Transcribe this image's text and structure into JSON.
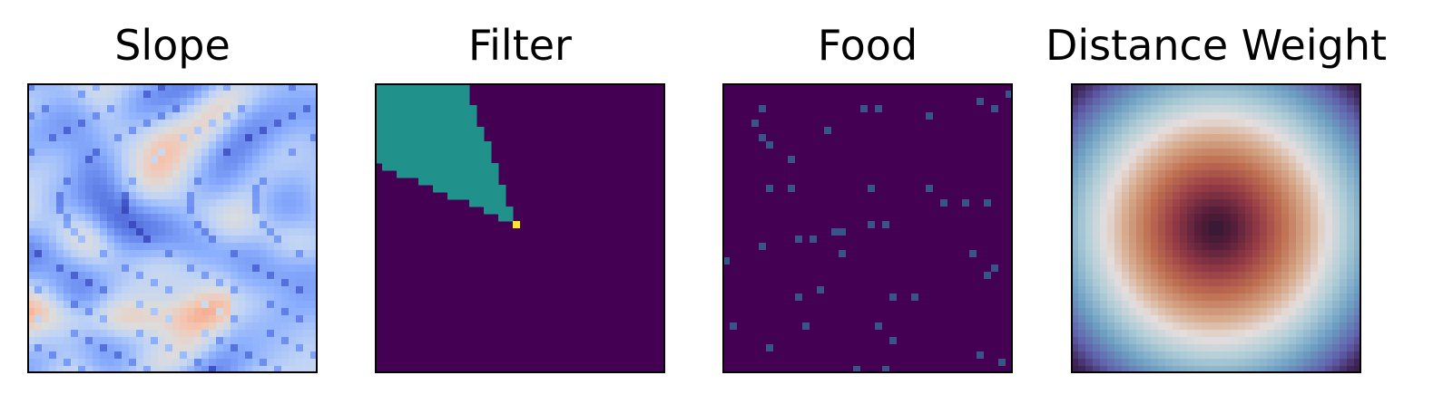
{
  "figure": {
    "panels": [
      {
        "id": "slope",
        "title": "Slope"
      },
      {
        "id": "filter",
        "title": "Filter"
      },
      {
        "id": "food",
        "title": "Food"
      },
      {
        "id": "distance",
        "title": "Distance Weight"
      }
    ]
  },
  "chart_data": [
    {
      "type": "heatmap",
      "title": "Slope",
      "grid_size": [
        40,
        40
      ],
      "colormap": "coolwarm",
      "axes_ticks": false,
      "description_values": "continuous slope field rendered with a blue-to-red diverging colormap, mostly low (blue) values with ridges of darker blue and a band of higher (orange) values across the lower-left",
      "value_range": [
        0,
        1
      ]
    },
    {
      "type": "heatmap",
      "title": "Filter",
      "grid_size": [
        40,
        40
      ],
      "colormap": "viridis",
      "axes_ticks": false,
      "levels": [
        0,
        1,
        2
      ],
      "level_colors": [
        "#440154",
        "#21918c",
        "#fde725"
      ],
      "origin_cell": [
        19,
        19
      ],
      "wedge_value": 1,
      "origin_value": 2
    },
    {
      "type": "heatmap",
      "title": "Food",
      "grid_size": [
        40,
        40
      ],
      "colormap": "viridis",
      "axes_ticks": false,
      "background_color": "#440154",
      "food_color": "#3b528b",
      "food_cells": [
        [
          39,
          1
        ],
        [
          5,
          3
        ],
        [
          19,
          3
        ],
        [
          21,
          3
        ],
        [
          28,
          4
        ],
        [
          37,
          3
        ],
        [
          35,
          2
        ],
        [
          4,
          5
        ],
        [
          14,
          6
        ],
        [
          5,
          7
        ],
        [
          6,
          8
        ],
        [
          9,
          10
        ],
        [
          6,
          14
        ],
        [
          9,
          14
        ],
        [
          20,
          14
        ],
        [
          28,
          14
        ],
        [
          30,
          16
        ],
        [
          33,
          16
        ],
        [
          36,
          16
        ],
        [
          20,
          19
        ],
        [
          15,
          20
        ],
        [
          16,
          20
        ],
        [
          22,
          19
        ],
        [
          10,
          21
        ],
        [
          12,
          21
        ],
        [
          5,
          22
        ],
        [
          16,
          23
        ],
        [
          34,
          23
        ],
        [
          0,
          24
        ],
        [
          37,
          25
        ],
        [
          36,
          26
        ],
        [
          10,
          29
        ],
        [
          13,
          28
        ],
        [
          23,
          29
        ],
        [
          26,
          29
        ],
        [
          1,
          33
        ],
        [
          11,
          33
        ],
        [
          21,
          33
        ],
        [
          23,
          35
        ],
        [
          6,
          36
        ],
        [
          18,
          39
        ],
        [
          22,
          39
        ],
        [
          35,
          37
        ],
        [
          38,
          38
        ]
      ]
    },
    {
      "type": "heatmap",
      "title": "Distance Weight",
      "grid_size": [
        40,
        40
      ],
      "colormap": "twilight_shifted",
      "axes_ticks": false,
      "center_cell": [
        20,
        20
      ],
      "pattern": "radial distance weight, dark center, reddish-orange ring, pale white ring, teal ring, purple corners"
    }
  ]
}
